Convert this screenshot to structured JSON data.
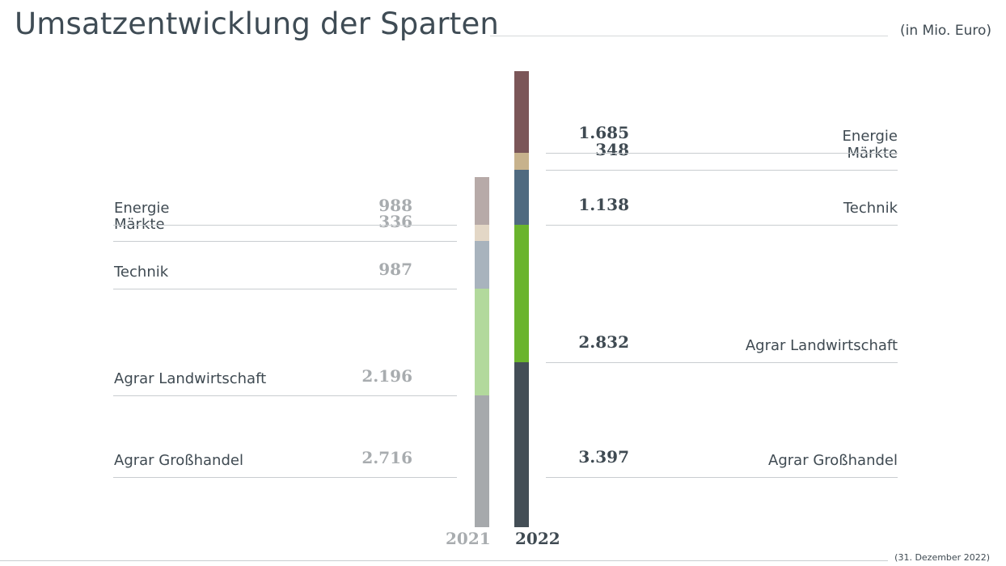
{
  "title": "Umsatzentwicklung der Sparten",
  "unit": "(in Mio. Euro)",
  "footnote": "(31. Dezember 2022)",
  "chart_data": {
    "type": "bar",
    "stacked": true,
    "categories": [
      "2021",
      "2022"
    ],
    "series": [
      {
        "name": "Agrar Großhandel",
        "values": [
          2716,
          3397
        ],
        "labels": [
          "2.716",
          "3.397"
        ],
        "colors": [
          "#a6a9ac",
          "#434e56"
        ]
      },
      {
        "name": "Agrar Landwirtschaft",
        "values": [
          2196,
          2832
        ],
        "labels": [
          "2.196",
          "2.832"
        ],
        "colors": [
          "#b2d99c",
          "#6ab42d"
        ]
      },
      {
        "name": "Technik",
        "values": [
          987,
          1138
        ],
        "labels": [
          "987",
          "1.138"
        ],
        "colors": [
          "#a8b3bd",
          "#4f6a80"
        ]
      },
      {
        "name": "Märkte",
        "values": [
          336,
          348
        ],
        "labels": [
          "336",
          "348"
        ],
        "colors": [
          "#e3d7c6",
          "#c7b28c"
        ]
      },
      {
        "name": "Energie",
        "values": [
          988,
          1685
        ],
        "labels": [
          "988",
          "1.685"
        ],
        "colors": [
          "#b7aaa8",
          "#7b5658"
        ]
      }
    ]
  }
}
